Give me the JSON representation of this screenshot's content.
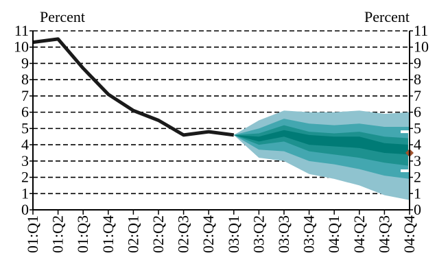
{
  "chart_data": {
    "type": "line",
    "title": "",
    "ylabel_left": "Percent",
    "ylabel_right": "Percent",
    "ylim": [
      0,
      11
    ],
    "yticks": [
      0,
      1,
      2,
      3,
      4,
      5,
      6,
      7,
      8,
      9,
      10,
      11
    ],
    "grid": "dashed-horizontal",
    "x": [
      "01:Q1",
      "01:Q2",
      "01:Q3",
      "01:Q4",
      "02:Q1",
      "02:Q2",
      "02:Q3",
      "02:Q4",
      "03:Q1",
      "03:Q2",
      "03:Q3",
      "03:Q4",
      "04:Q1",
      "04:Q2",
      "04:Q3",
      "04:Q4"
    ],
    "series": [
      {
        "values": [
          10.3,
          10.5,
          8.7,
          7.1,
          6.1,
          5.5,
          4.6,
          4.8,
          4.6,
          null,
          null,
          null,
          null,
          null,
          null,
          null
        ],
        "color": "#1a1a1a"
      }
    ],
    "fan_chart": {
      "start_index": 8,
      "bands": [
        {
          "name": "outer",
          "color": "#8fc3cf",
          "lower": [
            4.6,
            3.2,
            3.0,
            2.2,
            1.9,
            1.5,
            0.9,
            0.6
          ],
          "upper": [
            4.6,
            5.5,
            6.1,
            6.0,
            6.0,
            6.1,
            5.9,
            6.0
          ]
        },
        {
          "name": "middle",
          "color": "#43a7b0",
          "lower": [
            4.6,
            3.7,
            3.6,
            3.0,
            2.8,
            2.5,
            2.1,
            1.9
          ],
          "upper": [
            4.6,
            5.0,
            5.6,
            5.3,
            5.2,
            5.3,
            5.1,
            5.1
          ]
        },
        {
          "name": "inner",
          "color": "#1d918f",
          "lower": [
            4.6,
            4.0,
            4.2,
            3.6,
            3.4,
            3.2,
            2.9,
            2.7
          ],
          "upper": [
            4.6,
            4.7,
            5.2,
            4.8,
            4.7,
            4.8,
            4.5,
            4.4
          ]
        },
        {
          "name": "central",
          "color": "#007b76",
          "lower": [
            4.6,
            4.2,
            4.5,
            4.0,
            3.9,
            3.8,
            3.5,
            3.4
          ],
          "upper": [
            4.6,
            4.5,
            4.9,
            4.6,
            4.5,
            4.5,
            4.1,
            4.0
          ]
        }
      ]
    },
    "range_marker": {
      "x": "04:Q4",
      "low": 2.4,
      "high": 4.8,
      "color": "#ffffff"
    },
    "point_marker": {
      "x": "04:Q4",
      "value": 3.5,
      "color": "#a0522d"
    }
  }
}
